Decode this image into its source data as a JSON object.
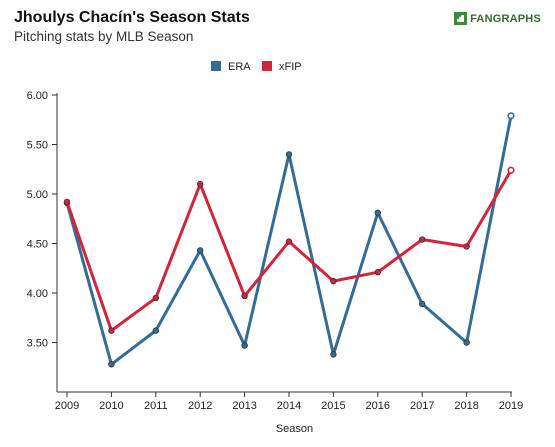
{
  "header": {
    "title": "Jhoulys Chacín's Season Stats",
    "subtitle": "Pitching stats by MLB Season",
    "logo_text": "FANGRAPHS"
  },
  "colors": {
    "era": "#346c95",
    "xfip": "#d0253d",
    "axis": "#333333"
  },
  "chart_data": {
    "type": "line",
    "title": "Jhoulys Chacín's Season Stats",
    "subtitle": "Pitching stats by MLB Season",
    "xlabel": "Season",
    "ylabel": "",
    "x": [
      2009,
      2010,
      2011,
      2012,
      2013,
      2014,
      2015,
      2016,
      2017,
      2018,
      2019
    ],
    "xticks": [
      "2009",
      "2010",
      "2011",
      "2012",
      "2013",
      "2014",
      "2015",
      "2016",
      "2017",
      "2018",
      "2019"
    ],
    "ylim": [
      3.0,
      6.0
    ],
    "yticks": [
      "6.00",
      "5.50",
      "5.00",
      "4.50",
      "4.00",
      "3.50"
    ],
    "legend_position": "top-center",
    "grid": false,
    "series": [
      {
        "name": "ERA",
        "color": "#346c95",
        "values": [
          4.91,
          3.28,
          3.62,
          4.43,
          3.47,
          5.4,
          3.38,
          4.81,
          3.89,
          3.5,
          5.79
        ]
      },
      {
        "name": "xFIP",
        "color": "#d0253d",
        "values": [
          4.92,
          3.62,
          3.95,
          5.1,
          3.97,
          4.52,
          4.12,
          4.21,
          4.54,
          4.47,
          5.24
        ]
      }
    ]
  }
}
